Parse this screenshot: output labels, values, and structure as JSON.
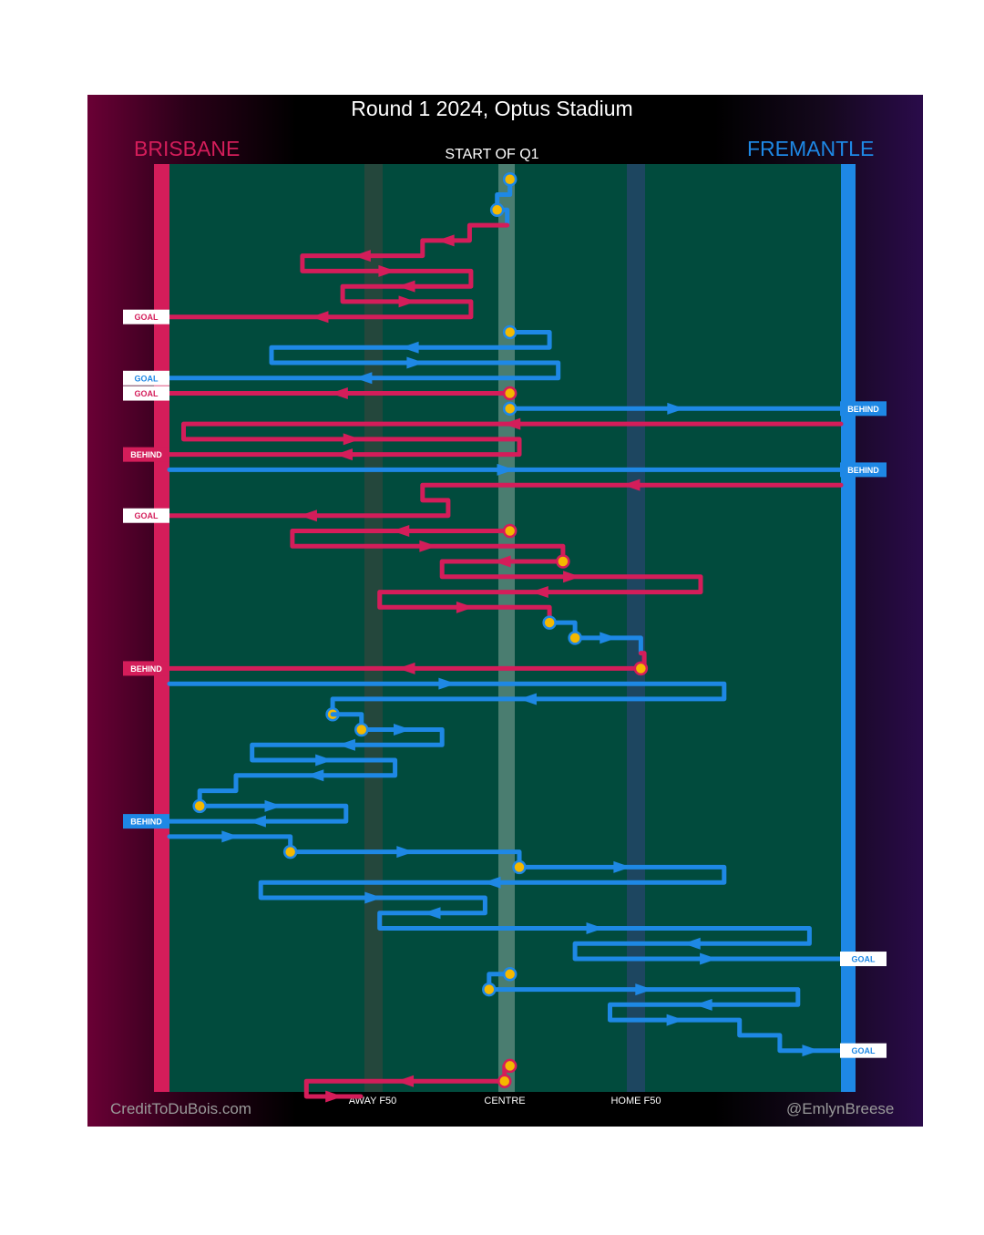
{
  "chart_data": {
    "type": "line",
    "title": "Round 1 2024, Optus Stadium",
    "period_label": "START OF Q1",
    "teams": {
      "left": {
        "name": "BRISBANE",
        "color": "#d41d5a"
      },
      "right": {
        "name": "FREMANTLE",
        "color": "#1e88e5"
      }
    },
    "x_axis": {
      "range": [
        0,
        100
      ],
      "ticks": [
        {
          "label": "AWAY F50",
          "x": 30
        },
        {
          "label": "CENTRE",
          "x": 50
        },
        {
          "label": "HOME F50",
          "x": 70
        }
      ]
    },
    "outcome_colors": {
      "GOAL": "#ffffff",
      "BEHIND": "team"
    },
    "chains": [
      {
        "team": "right",
        "pts": [
          [
            50.7,
            1
          ],
          [
            50.7,
            2
          ],
          [
            48.8,
            2
          ],
          [
            48.8,
            3
          ],
          [
            50.3,
            3
          ],
          [
            50.3,
            4
          ]
        ],
        "start": [
          50.7,
          1
        ],
        "start2": [
          48.8,
          3
        ]
      },
      {
        "team": "left",
        "pts": [
          [
            50.3,
            4
          ],
          [
            44.7,
            4
          ],
          [
            44.7,
            5
          ],
          [
            37.7,
            5
          ],
          [
            37.7,
            6
          ],
          [
            19.8,
            6
          ],
          [
            19.8,
            7
          ],
          [
            44.9,
            7
          ],
          [
            44.9,
            8
          ],
          [
            25.8,
            8
          ],
          [
            25.8,
            9
          ],
          [
            44.9,
            9
          ],
          [
            44.9,
            10
          ],
          [
            0,
            10
          ]
        ],
        "outcome": "GOAL"
      },
      {
        "team": "right",
        "pts": [
          [
            50.7,
            11
          ],
          [
            56.6,
            11
          ],
          [
            56.6,
            12
          ],
          [
            15.2,
            12
          ],
          [
            15.2,
            13
          ],
          [
            57.9,
            13
          ],
          [
            57.9,
            14
          ],
          [
            0,
            14
          ]
        ],
        "start": [
          50.7,
          11
        ],
        "outcome": "GOAL"
      },
      {
        "team": "left",
        "pts": [
          [
            50.7,
            15
          ],
          [
            0,
            15
          ]
        ],
        "start": [
          50.7,
          15
        ],
        "outcome": "GOAL"
      },
      {
        "team": "right",
        "pts": [
          [
            50.7,
            16
          ],
          [
            100,
            16
          ]
        ],
        "start": [
          50.7,
          16
        ],
        "outcome": "BEHIND"
      },
      {
        "team": "left",
        "pts": [
          [
            100,
            17
          ],
          [
            2.1,
            17
          ],
          [
            2.1,
            18
          ],
          [
            52.1,
            18
          ],
          [
            52.1,
            19
          ],
          [
            0,
            19
          ]
        ],
        "outcome": "BEHIND"
      },
      {
        "team": "right",
        "pts": [
          [
            0,
            20
          ],
          [
            100,
            20
          ]
        ],
        "outcome": "BEHIND"
      },
      {
        "team": "left",
        "pts": [
          [
            100,
            21
          ],
          [
            37.7,
            21
          ],
          [
            37.7,
            22
          ],
          [
            41.5,
            22
          ],
          [
            41.5,
            23
          ],
          [
            0,
            23
          ]
        ],
        "outcome": "GOAL"
      },
      {
        "team": "left",
        "pts": [
          [
            50.7,
            24
          ],
          [
            18.3,
            24
          ],
          [
            18.3,
            25
          ],
          [
            58.6,
            25
          ],
          [
            58.6,
            26
          ]
        ],
        "start": [
          50.7,
          24
        ]
      },
      {
        "team": "left",
        "pts": [
          [
            58.6,
            26
          ],
          [
            40.6,
            26
          ],
          [
            40.6,
            27
          ],
          [
            79.1,
            27
          ],
          [
            79.1,
            28
          ],
          [
            31.3,
            28
          ],
          [
            31.3,
            29
          ],
          [
            56.6,
            29
          ],
          [
            56.6,
            30
          ]
        ],
        "start": [
          58.6,
          26
        ]
      },
      {
        "team": "right",
        "pts": [
          [
            56.6,
            30
          ],
          [
            60.4,
            30
          ],
          [
            60.4,
            31
          ],
          [
            70.2,
            31
          ],
          [
            70.2,
            32
          ]
        ],
        "start": [
          56.6,
          30
        ],
        "start2": [
          60.4,
          31
        ]
      },
      {
        "team": "left",
        "pts": [
          [
            70.2,
            32
          ],
          [
            70.7,
            32
          ],
          [
            70.7,
            33
          ],
          [
            0,
            33
          ]
        ],
        "start": [
          70.2,
          33
        ],
        "outcome": "BEHIND"
      },
      {
        "team": "right",
        "pts": [
          [
            0,
            34
          ],
          [
            82.6,
            34
          ],
          [
            82.6,
            35
          ],
          [
            24.3,
            35
          ],
          [
            24.3,
            36
          ]
        ],
        "start2": [
          24.3,
          36
        ]
      },
      {
        "team": "right",
        "pts": [
          [
            24.3,
            36
          ],
          [
            28.6,
            36
          ],
          [
            28.6,
            37
          ],
          [
            40.6,
            37
          ],
          [
            40.6,
            38
          ],
          [
            12.3,
            38
          ],
          [
            12.3,
            39
          ],
          [
            33.6,
            39
          ],
          [
            33.6,
            40
          ],
          [
            9.9,
            40
          ],
          [
            9.9,
            41
          ],
          [
            4.5,
            41
          ],
          [
            4.5,
            42
          ],
          [
            26.3,
            42
          ],
          [
            26.3,
            43
          ],
          [
            0,
            43
          ]
        ],
        "start": [
          28.6,
          37
        ],
        "start2": [
          4.5,
          42
        ],
        "outcome": "BEHIND"
      },
      {
        "team": "right",
        "pts": [
          [
            0,
            44
          ],
          [
            18.0,
            44
          ],
          [
            18.0,
            45
          ],
          [
            52.1,
            45
          ],
          [
            52.1,
            46
          ],
          [
            82.6,
            46
          ],
          [
            82.6,
            47
          ],
          [
            13.6,
            47
          ],
          [
            13.6,
            48
          ],
          [
            47.0,
            48
          ],
          [
            47.0,
            49
          ],
          [
            31.3,
            49
          ],
          [
            31.3,
            50
          ],
          [
            95.3,
            50
          ],
          [
            95.3,
            51
          ],
          [
            60.4,
            51
          ],
          [
            60.4,
            52
          ],
          [
            100,
            52
          ]
        ],
        "start": [
          18.0,
          45
        ],
        "start2": [
          52.1,
          46
        ],
        "outcome": "GOAL"
      },
      {
        "team": "right",
        "pts": [
          [
            50.7,
            53
          ],
          [
            47.6,
            53
          ],
          [
            47.6,
            54
          ],
          [
            93.6,
            54
          ],
          [
            93.6,
            55
          ],
          [
            65.6,
            55
          ],
          [
            65.6,
            56
          ],
          [
            84.9,
            56
          ],
          [
            84.9,
            57
          ],
          [
            90.9,
            57
          ],
          [
            90.9,
            58
          ],
          [
            100,
            58
          ]
        ],
        "start": [
          50.7,
          53
        ],
        "start2": [
          47.6,
          54
        ],
        "outcome": "GOAL"
      },
      {
        "team": "left",
        "pts": [
          [
            50.7,
            59
          ],
          [
            49.9,
            59
          ],
          [
            49.9,
            60
          ],
          [
            20.4,
            60
          ],
          [
            20.4,
            61
          ],
          [
            28.5,
            61
          ]
        ],
        "start": [
          50.7,
          59
        ],
        "start2": [
          49.9,
          60
        ]
      }
    ]
  },
  "credits": {
    "left": "CreditToDuBois.com",
    "right": "@EmlynBreese"
  }
}
